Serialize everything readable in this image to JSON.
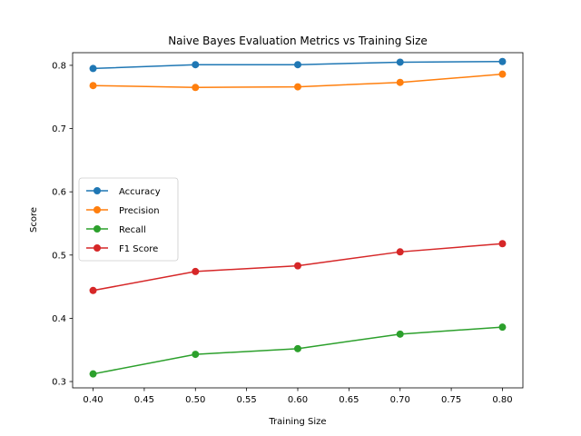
{
  "chart_data": {
    "type": "line",
    "title": "Naive Bayes Evaluation Metrics vs Training Size",
    "xlabel": "Training Size",
    "ylabel": "Score",
    "x": [
      0.4,
      0.5,
      0.6,
      0.7,
      0.8
    ],
    "xlim": [
      0.38,
      0.82
    ],
    "ylim": [
      0.29,
      0.82
    ],
    "xticks": [
      "0.40",
      "0.45",
      "0.50",
      "0.55",
      "0.60",
      "0.65",
      "0.70",
      "0.75",
      "0.80"
    ],
    "yticks": [
      "0.3",
      "0.4",
      "0.5",
      "0.6",
      "0.7",
      "0.8"
    ],
    "grid": false,
    "legend_position": "center-left",
    "series": [
      {
        "name": "Accuracy",
        "color": "#1f77b4",
        "values": [
          0.795,
          0.801,
          0.801,
          0.805,
          0.806
        ]
      },
      {
        "name": "Precision",
        "color": "#ff7f0e",
        "values": [
          0.768,
          0.765,
          0.766,
          0.773,
          0.786
        ]
      },
      {
        "name": "Recall",
        "color": "#2ca02c",
        "values": [
          0.312,
          0.343,
          0.352,
          0.375,
          0.386
        ]
      },
      {
        "name": "F1 Score",
        "color": "#d62728",
        "values": [
          0.444,
          0.474,
          0.483,
          0.505,
          0.518
        ]
      }
    ]
  }
}
